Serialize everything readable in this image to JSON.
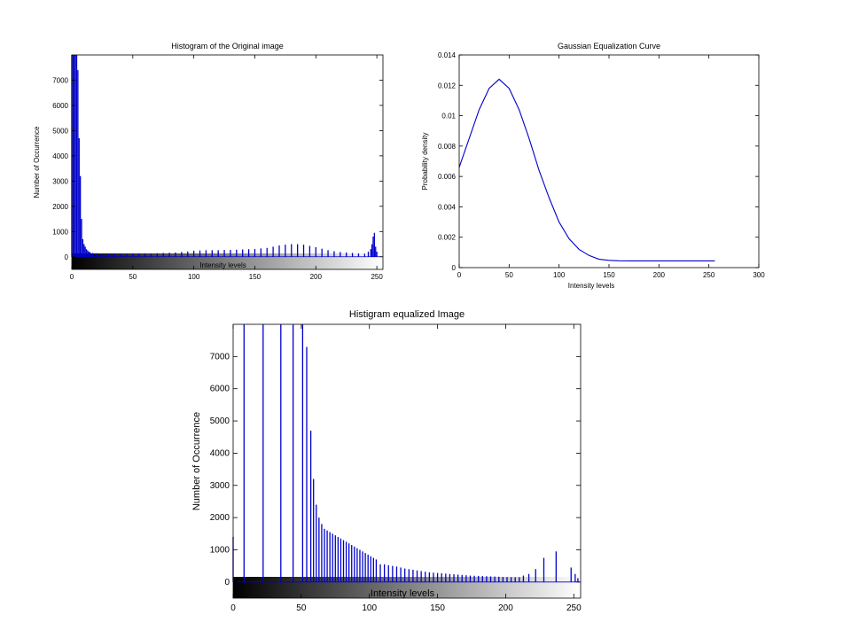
{
  "chart_data": [
    {
      "id": "orig",
      "type": "bar",
      "title": "Histogram of the Original image",
      "xlabel": "Intensity levels",
      "ylabel": "Number of Occurrence",
      "xlim": [
        0,
        255
      ],
      "ylim": [
        -500,
        8000
      ],
      "xticks": [
        0,
        50,
        100,
        150,
        200,
        250
      ],
      "yticks": [
        0,
        1000,
        2000,
        3000,
        4000,
        5000,
        6000,
        7000
      ],
      "grayscale_bar": true,
      "points": [
        [
          0,
          8000
        ],
        [
          1,
          8000
        ],
        [
          2,
          8000
        ],
        [
          3,
          8000
        ],
        [
          4,
          8000
        ],
        [
          5,
          7400
        ],
        [
          6,
          4700
        ],
        [
          7,
          3200
        ],
        [
          8,
          1500
        ],
        [
          9,
          700
        ],
        [
          10,
          500
        ],
        [
          11,
          400
        ],
        [
          12,
          300
        ],
        [
          13,
          250
        ],
        [
          14,
          200
        ],
        [
          15,
          180
        ],
        [
          17,
          150
        ],
        [
          20,
          140
        ],
        [
          23,
          130
        ],
        [
          26,
          130
        ],
        [
          30,
          120
        ],
        [
          35,
          120
        ],
        [
          40,
          110
        ],
        [
          45,
          110
        ],
        [
          50,
          120
        ],
        [
          55,
          120
        ],
        [
          60,
          130
        ],
        [
          65,
          130
        ],
        [
          70,
          140
        ],
        [
          75,
          150
        ],
        [
          80,
          160
        ],
        [
          85,
          170
        ],
        [
          90,
          190
        ],
        [
          95,
          210
        ],
        [
          100,
          240
        ],
        [
          105,
          250
        ],
        [
          110,
          260
        ],
        [
          115,
          260
        ],
        [
          120,
          260
        ],
        [
          125,
          270
        ],
        [
          130,
          270
        ],
        [
          135,
          280
        ],
        [
          140,
          290
        ],
        [
          145,
          300
        ],
        [
          150,
          310
        ],
        [
          155,
          330
        ],
        [
          160,
          350
        ],
        [
          165,
          400
        ],
        [
          170,
          450
        ],
        [
          175,
          480
        ],
        [
          180,
          500
        ],
        [
          185,
          500
        ],
        [
          190,
          480
        ],
        [
          195,
          430
        ],
        [
          200,
          380
        ],
        [
          205,
          320
        ],
        [
          210,
          260
        ],
        [
          215,
          220
        ],
        [
          220,
          190
        ],
        [
          225,
          170
        ],
        [
          230,
          150
        ],
        [
          235,
          130
        ],
        [
          240,
          120
        ],
        [
          243,
          200
        ],
        [
          245,
          300
        ],
        [
          246,
          500
        ],
        [
          247,
          800
        ],
        [
          248,
          950
        ],
        [
          249,
          400
        ],
        [
          250,
          200
        ]
      ]
    },
    {
      "id": "gauss",
      "type": "line",
      "title": "Gaussian Equalization Curve",
      "xlabel": "Intensity levels",
      "ylabel": "Probability density",
      "xlim": [
        0,
        300
      ],
      "ylim": [
        0,
        0.014
      ],
      "xticks": [
        0,
        50,
        100,
        150,
        200,
        250,
        300
      ],
      "yticks": [
        0,
        0.002,
        0.004,
        0.006,
        0.008,
        0.01,
        0.012,
        0.014
      ],
      "ytick_labels": [
        "0",
        "0.002",
        "0.004",
        "0.006",
        "0.008",
        "0.01",
        "0.012",
        "0.014"
      ],
      "series": [
        {
          "color": "#0000cc",
          "x": [
            0,
            10,
            20,
            30,
            40,
            50,
            60,
            70,
            80,
            90,
            100,
            110,
            120,
            130,
            140,
            150,
            160,
            170,
            180,
            190,
            200,
            210,
            220,
            230,
            240,
            250,
            256
          ],
          "y": [
            0.0066,
            0.0085,
            0.0104,
            0.0118,
            0.0124,
            0.0118,
            0.0104,
            0.0085,
            0.0064,
            0.0046,
            0.003,
            0.0019,
            0.0012,
            0.0008,
            0.00055,
            0.00048,
            0.00045,
            0.00044,
            0.00044,
            0.00044,
            0.00044,
            0.00044,
            0.00044,
            0.00044,
            0.00044,
            0.00044,
            0.00044
          ]
        }
      ]
    },
    {
      "id": "equal",
      "type": "bar",
      "title": "Histigram equalized Image",
      "xlabel": "Intensity levels",
      "ylabel": "Number of Occurrence",
      "xlim": [
        0,
        255
      ],
      "ylim": [
        -500,
        8000
      ],
      "xticks": [
        0,
        50,
        100,
        150,
        200,
        250
      ],
      "yticks": [
        0,
        1000,
        2000,
        3000,
        4000,
        5000,
        6000,
        7000
      ],
      "grayscale_bar": true,
      "points": [
        [
          0,
          1400
        ],
        [
          8,
          8000
        ],
        [
          22,
          8000
        ],
        [
          35,
          8000
        ],
        [
          44,
          8000
        ],
        [
          51,
          8000
        ],
        [
          54,
          7300
        ],
        [
          57,
          4700
        ],
        [
          59,
          3200
        ],
        [
          61,
          2400
        ],
        [
          63,
          2000
        ],
        [
          65,
          1800
        ],
        [
          67,
          1650
        ],
        [
          69,
          1600
        ],
        [
          71,
          1550
        ],
        [
          73,
          1500
        ],
        [
          75,
          1450
        ],
        [
          77,
          1400
        ],
        [
          79,
          1350
        ],
        [
          81,
          1300
        ],
        [
          83,
          1250
        ],
        [
          85,
          1200
        ],
        [
          87,
          1150
        ],
        [
          89,
          1100
        ],
        [
          91,
          1050
        ],
        [
          93,
          1000
        ],
        [
          95,
          950
        ],
        [
          97,
          900
        ],
        [
          99,
          850
        ],
        [
          101,
          800
        ],
        [
          103,
          750
        ],
        [
          105,
          700
        ],
        [
          108,
          550
        ],
        [
          111,
          550
        ],
        [
          114,
          520
        ],
        [
          117,
          500
        ],
        [
          120,
          480
        ],
        [
          123,
          450
        ],
        [
          126,
          420
        ],
        [
          129,
          400
        ],
        [
          132,
          380
        ],
        [
          135,
          360
        ],
        [
          138,
          340
        ],
        [
          141,
          320
        ],
        [
          144,
          300
        ],
        [
          147,
          290
        ],
        [
          150,
          280
        ],
        [
          153,
          270
        ],
        [
          156,
          260
        ],
        [
          159,
          250
        ],
        [
          162,
          240
        ],
        [
          165,
          230
        ],
        [
          168,
          220
        ],
        [
          171,
          210
        ],
        [
          174,
          200
        ],
        [
          177,
          195
        ],
        [
          180,
          190
        ],
        [
          183,
          185
        ],
        [
          186,
          180
        ],
        [
          189,
          175
        ],
        [
          192,
          170
        ],
        [
          195,
          165
        ],
        [
          198,
          160
        ],
        [
          201,
          155
        ],
        [
          204,
          150
        ],
        [
          207,
          150
        ],
        [
          210,
          150
        ],
        [
          213,
          200
        ],
        [
          217,
          250
        ],
        [
          222,
          400
        ],
        [
          228,
          750
        ],
        [
          237,
          950
        ],
        [
          248,
          450
        ],
        [
          251,
          250
        ],
        [
          253,
          120
        ]
      ]
    }
  ]
}
